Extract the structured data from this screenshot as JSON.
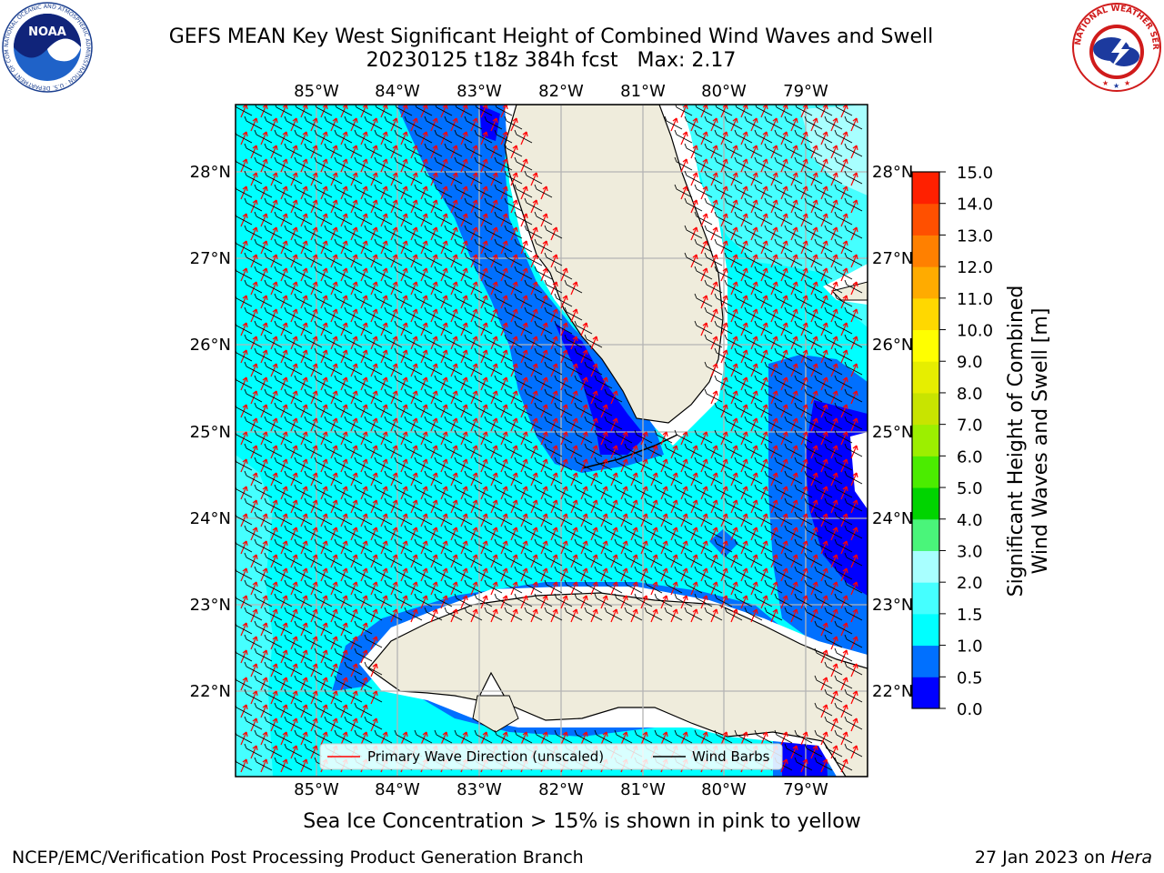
{
  "header": {
    "title_line1": "GEFS MEAN Key West Significant Height of Combined Wind Waves and Swell",
    "title_line2": "20230125 t18z 384h fcst   Max: 2.17"
  },
  "logos": {
    "left": {
      "name": "NOAA",
      "ring_text": "NATIONAL OCEANIC AND ATMOSPHERIC ADMINISTRATION · U.S. DEPARTMENT OF COMMERCE ·"
    },
    "right": {
      "ring_text": "NATIONAL WEATHER SERVICE"
    }
  },
  "map": {
    "lon_labels": [
      "85°W",
      "84°W",
      "83°W",
      "82°W",
      "81°W",
      "80°W",
      "79°W"
    ],
    "lat_labels": [
      "28°N",
      "27°N",
      "26°N",
      "25°N",
      "24°N",
      "23°N",
      "22°N"
    ],
    "legend": {
      "wave_direction": "Primary Wave Direction (unscaled)",
      "wind_barbs": "Wind Barbs",
      "wave_color": "#ff0000",
      "barb_color": "#000000"
    },
    "land_color": "#efecdc",
    "coast_color": "#000000",
    "grid_color": "#b4b4b4"
  },
  "colorbar": {
    "label_line1": "Significant Height of Combined",
    "label_line2": "Wind Waves and Swell [m]",
    "ticks": [
      "0.0",
      "0.5",
      "1.0",
      "1.5",
      "2.0",
      "3.0",
      "4.0",
      "5.0",
      "6.0",
      "7.0",
      "8.0",
      "9.0",
      "10.0",
      "11.0",
      "12.0",
      "13.0",
      "14.0",
      "15.0"
    ],
    "colors": [
      "#0000ff",
      "#0070ff",
      "#00ffff",
      "#45ffff",
      "#a8ffff",
      "#4af57a",
      "#00d400",
      "#4bec00",
      "#9cef00",
      "#c8e400",
      "#e6ee00",
      "#ffff00",
      "#ffd800",
      "#ffab00",
      "#ff8000",
      "#ff5000",
      "#ff2000"
    ]
  },
  "footer": {
    "ice_note": "Sea Ice Concentration > 15% is shown in pink to yellow",
    "credit": "NCEP/EMC/Verification Post Processing Product Generation Branch",
    "date": "27 Jan 2023 on ",
    "host": "Hera"
  }
}
